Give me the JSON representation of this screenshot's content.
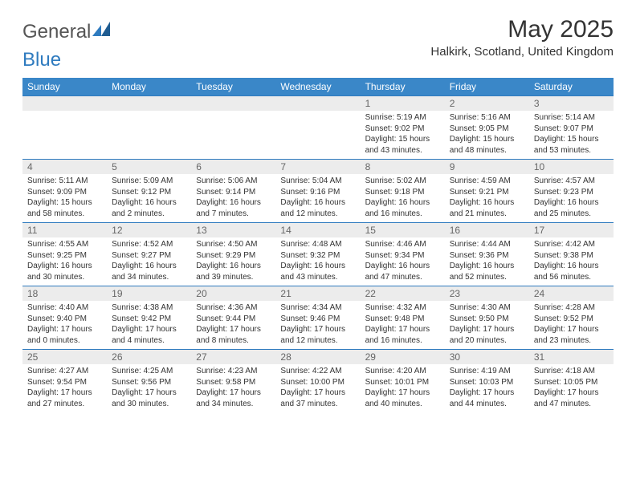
{
  "logo": {
    "text_a": "General",
    "text_b": "Blue"
  },
  "title": "May 2025",
  "subtitle": "Halkirk, Scotland, United Kingdom",
  "colors": {
    "header_bg": "#3a87c8",
    "header_text": "#ffffff",
    "daynum_bg": "#ececec",
    "daynum_text": "#666666",
    "rule": "#2f7bbf",
    "body_text": "#333333",
    "logo_gray": "#555555",
    "logo_blue": "#2f7bbf",
    "page_bg": "#ffffff"
  },
  "typography": {
    "title_fontsize": 30,
    "subtitle_fontsize": 15,
    "weekday_fontsize": 12,
    "daynum_fontsize": 12,
    "body_fontsize": 10
  },
  "weekdays": [
    "Sunday",
    "Monday",
    "Tuesday",
    "Wednesday",
    "Thursday",
    "Friday",
    "Saturday"
  ],
  "weeks": [
    [
      {
        "n": "",
        "sunrise": "",
        "sunset": "",
        "daylight": ""
      },
      {
        "n": "",
        "sunrise": "",
        "sunset": "",
        "daylight": ""
      },
      {
        "n": "",
        "sunrise": "",
        "sunset": "",
        "daylight": ""
      },
      {
        "n": "",
        "sunrise": "",
        "sunset": "",
        "daylight": ""
      },
      {
        "n": "1",
        "sunrise": "Sunrise: 5:19 AM",
        "sunset": "Sunset: 9:02 PM",
        "daylight": "Daylight: 15 hours and 43 minutes."
      },
      {
        "n": "2",
        "sunrise": "Sunrise: 5:16 AM",
        "sunset": "Sunset: 9:05 PM",
        "daylight": "Daylight: 15 hours and 48 minutes."
      },
      {
        "n": "3",
        "sunrise": "Sunrise: 5:14 AM",
        "sunset": "Sunset: 9:07 PM",
        "daylight": "Daylight: 15 hours and 53 minutes."
      }
    ],
    [
      {
        "n": "4",
        "sunrise": "Sunrise: 5:11 AM",
        "sunset": "Sunset: 9:09 PM",
        "daylight": "Daylight: 15 hours and 58 minutes."
      },
      {
        "n": "5",
        "sunrise": "Sunrise: 5:09 AM",
        "sunset": "Sunset: 9:12 PM",
        "daylight": "Daylight: 16 hours and 2 minutes."
      },
      {
        "n": "6",
        "sunrise": "Sunrise: 5:06 AM",
        "sunset": "Sunset: 9:14 PM",
        "daylight": "Daylight: 16 hours and 7 minutes."
      },
      {
        "n": "7",
        "sunrise": "Sunrise: 5:04 AM",
        "sunset": "Sunset: 9:16 PM",
        "daylight": "Daylight: 16 hours and 12 minutes."
      },
      {
        "n": "8",
        "sunrise": "Sunrise: 5:02 AM",
        "sunset": "Sunset: 9:18 PM",
        "daylight": "Daylight: 16 hours and 16 minutes."
      },
      {
        "n": "9",
        "sunrise": "Sunrise: 4:59 AM",
        "sunset": "Sunset: 9:21 PM",
        "daylight": "Daylight: 16 hours and 21 minutes."
      },
      {
        "n": "10",
        "sunrise": "Sunrise: 4:57 AM",
        "sunset": "Sunset: 9:23 PM",
        "daylight": "Daylight: 16 hours and 25 minutes."
      }
    ],
    [
      {
        "n": "11",
        "sunrise": "Sunrise: 4:55 AM",
        "sunset": "Sunset: 9:25 PM",
        "daylight": "Daylight: 16 hours and 30 minutes."
      },
      {
        "n": "12",
        "sunrise": "Sunrise: 4:52 AM",
        "sunset": "Sunset: 9:27 PM",
        "daylight": "Daylight: 16 hours and 34 minutes."
      },
      {
        "n": "13",
        "sunrise": "Sunrise: 4:50 AM",
        "sunset": "Sunset: 9:29 PM",
        "daylight": "Daylight: 16 hours and 39 minutes."
      },
      {
        "n": "14",
        "sunrise": "Sunrise: 4:48 AM",
        "sunset": "Sunset: 9:32 PM",
        "daylight": "Daylight: 16 hours and 43 minutes."
      },
      {
        "n": "15",
        "sunrise": "Sunrise: 4:46 AM",
        "sunset": "Sunset: 9:34 PM",
        "daylight": "Daylight: 16 hours and 47 minutes."
      },
      {
        "n": "16",
        "sunrise": "Sunrise: 4:44 AM",
        "sunset": "Sunset: 9:36 PM",
        "daylight": "Daylight: 16 hours and 52 minutes."
      },
      {
        "n": "17",
        "sunrise": "Sunrise: 4:42 AM",
        "sunset": "Sunset: 9:38 PM",
        "daylight": "Daylight: 16 hours and 56 minutes."
      }
    ],
    [
      {
        "n": "18",
        "sunrise": "Sunrise: 4:40 AM",
        "sunset": "Sunset: 9:40 PM",
        "daylight": "Daylight: 17 hours and 0 minutes."
      },
      {
        "n": "19",
        "sunrise": "Sunrise: 4:38 AM",
        "sunset": "Sunset: 9:42 PM",
        "daylight": "Daylight: 17 hours and 4 minutes."
      },
      {
        "n": "20",
        "sunrise": "Sunrise: 4:36 AM",
        "sunset": "Sunset: 9:44 PM",
        "daylight": "Daylight: 17 hours and 8 minutes."
      },
      {
        "n": "21",
        "sunrise": "Sunrise: 4:34 AM",
        "sunset": "Sunset: 9:46 PM",
        "daylight": "Daylight: 17 hours and 12 minutes."
      },
      {
        "n": "22",
        "sunrise": "Sunrise: 4:32 AM",
        "sunset": "Sunset: 9:48 PM",
        "daylight": "Daylight: 17 hours and 16 minutes."
      },
      {
        "n": "23",
        "sunrise": "Sunrise: 4:30 AM",
        "sunset": "Sunset: 9:50 PM",
        "daylight": "Daylight: 17 hours and 20 minutes."
      },
      {
        "n": "24",
        "sunrise": "Sunrise: 4:28 AM",
        "sunset": "Sunset: 9:52 PM",
        "daylight": "Daylight: 17 hours and 23 minutes."
      }
    ],
    [
      {
        "n": "25",
        "sunrise": "Sunrise: 4:27 AM",
        "sunset": "Sunset: 9:54 PM",
        "daylight": "Daylight: 17 hours and 27 minutes."
      },
      {
        "n": "26",
        "sunrise": "Sunrise: 4:25 AM",
        "sunset": "Sunset: 9:56 PM",
        "daylight": "Daylight: 17 hours and 30 minutes."
      },
      {
        "n": "27",
        "sunrise": "Sunrise: 4:23 AM",
        "sunset": "Sunset: 9:58 PM",
        "daylight": "Daylight: 17 hours and 34 minutes."
      },
      {
        "n": "28",
        "sunrise": "Sunrise: 4:22 AM",
        "sunset": "Sunset: 10:00 PM",
        "daylight": "Daylight: 17 hours and 37 minutes."
      },
      {
        "n": "29",
        "sunrise": "Sunrise: 4:20 AM",
        "sunset": "Sunset: 10:01 PM",
        "daylight": "Daylight: 17 hours and 40 minutes."
      },
      {
        "n": "30",
        "sunrise": "Sunrise: 4:19 AM",
        "sunset": "Sunset: 10:03 PM",
        "daylight": "Daylight: 17 hours and 44 minutes."
      },
      {
        "n": "31",
        "sunrise": "Sunrise: 4:18 AM",
        "sunset": "Sunset: 10:05 PM",
        "daylight": "Daylight: 17 hours and 47 minutes."
      }
    ]
  ]
}
